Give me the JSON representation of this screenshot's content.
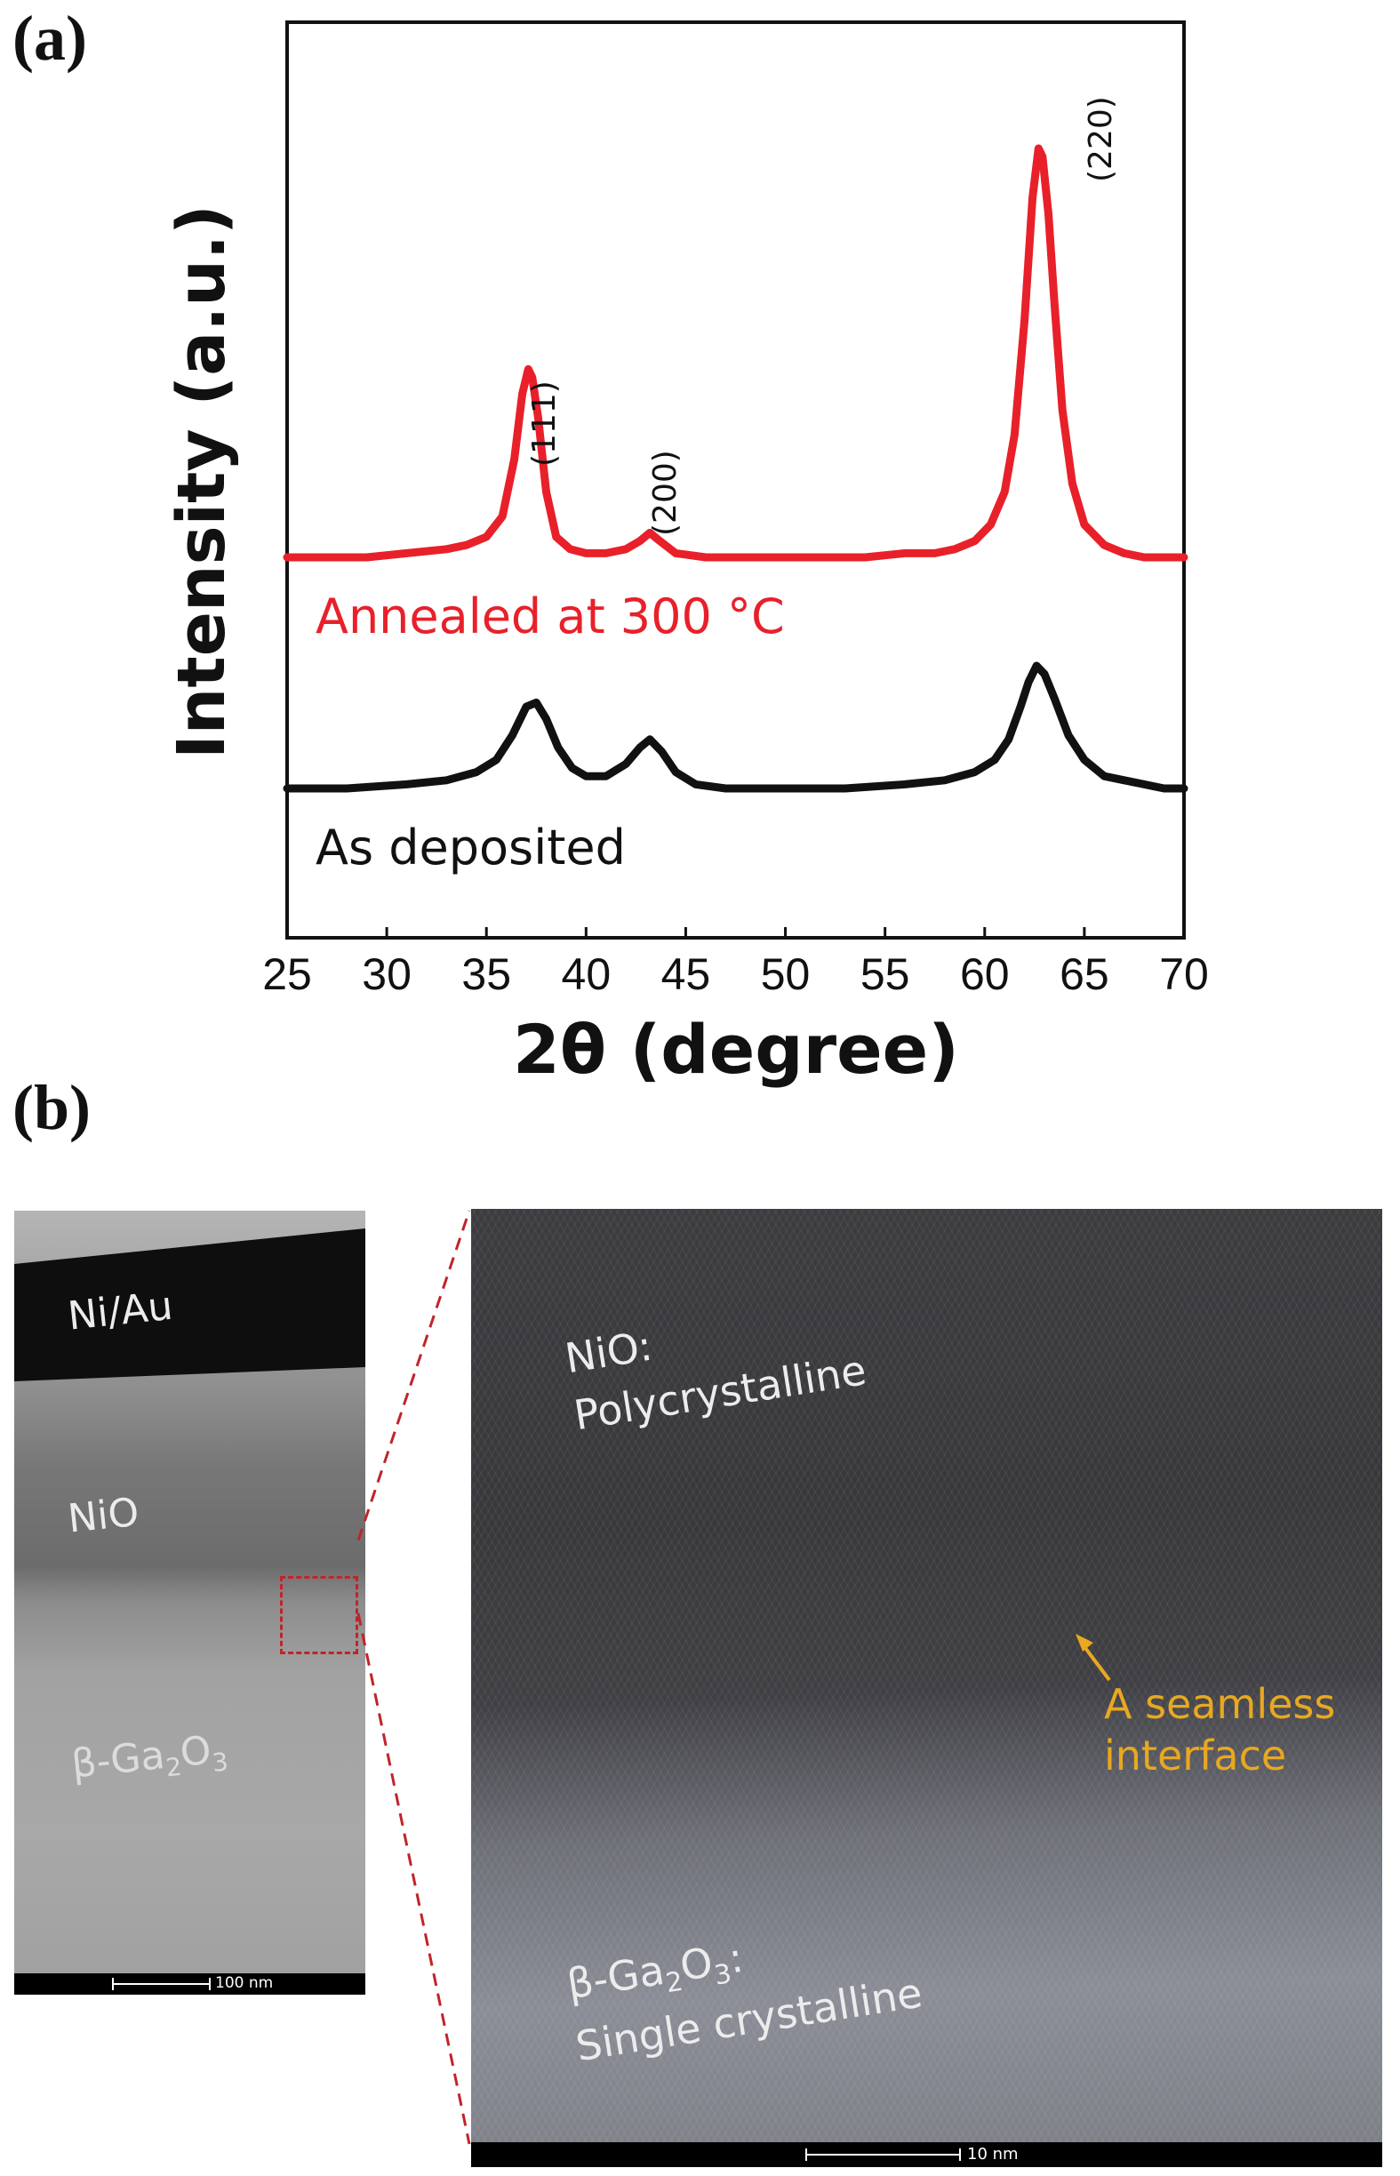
{
  "panels": {
    "a_label": "(a)",
    "b_label": "(b)"
  },
  "chart_data": {
    "type": "line",
    "xlabel": "2θ (degree)",
    "ylabel": "Intensity (a.u.)",
    "xlim": [
      25,
      70
    ],
    "xticks": [
      25,
      30,
      35,
      40,
      45,
      50,
      55,
      60,
      65,
      70
    ],
    "y_ticks_shown": false,
    "grid": false,
    "legend": "none",
    "series": [
      {
        "name": "Annealed at 300 °C",
        "color": "#e8202a",
        "x": [
          25,
          27,
          29,
          31,
          33,
          34,
          35,
          35.8,
          36.4,
          36.8,
          37.1,
          37.3,
          37.6,
          38.0,
          38.5,
          39.2,
          40,
          41,
          42,
          42.7,
          43.2,
          43.7,
          44.5,
          46,
          48,
          50,
          52,
          54,
          56,
          57.5,
          58.5,
          59.5,
          60.3,
          61,
          61.5,
          62,
          62.4,
          62.7,
          62.9,
          63.2,
          63.5,
          63.9,
          64.4,
          65,
          66,
          67,
          68,
          70
        ],
        "y": [
          0.0,
          0.0,
          0.0,
          0.01,
          0.02,
          0.03,
          0.05,
          0.1,
          0.24,
          0.4,
          0.46,
          0.44,
          0.34,
          0.16,
          0.05,
          0.02,
          0.01,
          0.01,
          0.02,
          0.04,
          0.06,
          0.04,
          0.01,
          0.0,
          0.0,
          0.0,
          0.0,
          0.0,
          0.01,
          0.01,
          0.02,
          0.04,
          0.08,
          0.16,
          0.3,
          0.58,
          0.88,
          1.0,
          0.98,
          0.84,
          0.62,
          0.36,
          0.18,
          0.08,
          0.03,
          0.01,
          0.0,
          0.0
        ]
      },
      {
        "name": "As deposited",
        "color": "#111111",
        "x": [
          25,
          28,
          31,
          33,
          34.5,
          35.5,
          36.3,
          37.0,
          37.5,
          38.0,
          38.6,
          39.3,
          40,
          41,
          42,
          42.7,
          43.2,
          43.8,
          44.5,
          45.5,
          47,
          50,
          53,
          56,
          58,
          59.5,
          60.5,
          61.2,
          61.8,
          62.2,
          62.6,
          63.0,
          63.5,
          64.2,
          65,
          66,
          67,
          68,
          69,
          70
        ],
        "y": [
          0.0,
          0.0,
          0.01,
          0.02,
          0.04,
          0.07,
          0.13,
          0.2,
          0.21,
          0.17,
          0.1,
          0.05,
          0.03,
          0.03,
          0.06,
          0.1,
          0.12,
          0.09,
          0.04,
          0.01,
          0.0,
          0.0,
          0.0,
          0.01,
          0.02,
          0.04,
          0.07,
          0.12,
          0.2,
          0.26,
          0.3,
          0.28,
          0.22,
          0.13,
          0.07,
          0.03,
          0.02,
          0.01,
          0.0,
          0.0
        ]
      }
    ],
    "annotations": [
      "(111)",
      "(200)",
      "(220)"
    ]
  },
  "tem_left": {
    "labels": {
      "metal": "Ni/Au",
      "nio": "NiO",
      "substrate_prefix": "β-Ga",
      "substrate_sub1": "2",
      "substrate_mid": "O",
      "substrate_sub2": "3"
    },
    "scale": "100 nm"
  },
  "tem_right": {
    "nio_line1": "NiO:",
    "nio_line2": "Polycrystalline",
    "substrate_prefix": "β-Ga",
    "substrate_sub1": "2",
    "substrate_mid": "O",
    "substrate_sub2": "3",
    "substrate_colon": ":",
    "substrate_line2": "Single crystalline",
    "interface_line1": "A seamless",
    "interface_line2": "interface",
    "interface_color": "#e8a820",
    "scale": "10 nm"
  }
}
